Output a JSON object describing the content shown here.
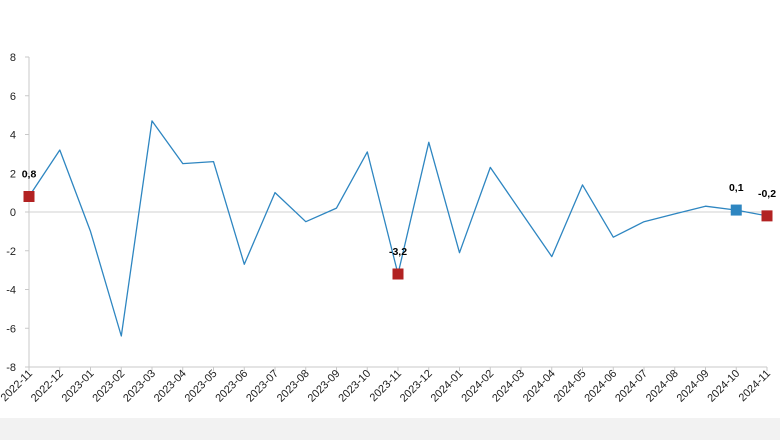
{
  "chart_data": {
    "type": "line",
    "title": "",
    "xlabel": "",
    "ylabel": "",
    "ylim": [
      -8,
      8
    ],
    "yticks": [
      8,
      6,
      4,
      2,
      0,
      -2,
      -4,
      -6,
      -8
    ],
    "grid": false,
    "legend": "none",
    "categories": [
      "2022-11",
      "2022-12",
      "2023-01",
      "2023-02",
      "2023-03",
      "2023-04",
      "2023-05",
      "2023-06",
      "2023-07",
      "2023-08",
      "2023-09",
      "2023-10",
      "2023-11",
      "2023-12",
      "2024-01",
      "2024-02",
      "2024-03",
      "2024-04",
      "2024-05",
      "2024-06",
      "2024-07",
      "2024-08",
      "2024-09",
      "2024-10",
      "2024-11"
    ],
    "series": [
      {
        "values": [
          0.8,
          3.2,
          -1.0,
          -6.4,
          4.7,
          2.5,
          2.6,
          -2.7,
          1.0,
          -0.5,
          0.2,
          3.1,
          -3.2,
          3.6,
          -2.1,
          2.3,
          0.0,
          -2.3,
          1.4,
          -1.3,
          -0.5,
          -0.1,
          0.3,
          0.1,
          -0.2
        ],
        "color": "#2e86c1"
      }
    ],
    "highlighted_points": [
      {
        "category": "2022-11",
        "value": 0.8,
        "label": "0,8",
        "color": "#b22222"
      },
      {
        "category": "2023-11",
        "value": -3.2,
        "label": "-3,2",
        "color": "#b22222"
      },
      {
        "category": "2024-10",
        "value": 0.1,
        "label": "0,1",
        "color": "#2e86c1"
      },
      {
        "category": "2024-11",
        "value": -0.2,
        "label": "-0,2",
        "color": "#b22222"
      }
    ],
    "colors": {
      "axis": "#c8c8c8",
      "zero_line": "#d0d0d0",
      "line": "#2e86c1"
    }
  }
}
